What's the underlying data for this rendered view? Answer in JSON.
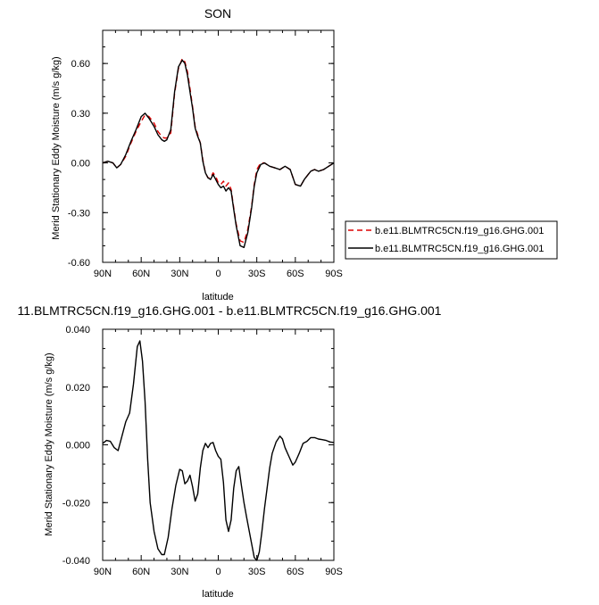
{
  "chart_data": [
    {
      "type": "line",
      "title": "SON",
      "xlabel": "latitude",
      "ylabel": "Merid Stationary Eddy Moisture (m/s g/kg)",
      "x_tick_values": [
        90,
        60,
        30,
        0,
        -30,
        -60,
        -90
      ],
      "x_tick_labels": [
        "90N",
        "60N",
        "30N",
        "0",
        "30S",
        "60S",
        "90S"
      ],
      "y_tick_values": [
        0.6,
        0.3,
        0.0,
        -0.3,
        -0.6
      ],
      "y_tick_labels": [
        "0.60",
        "0.30",
        "0.00",
        "-0.30",
        "-0.60"
      ],
      "xlim": [
        90,
        -90
      ],
      "ylim": [
        -0.6,
        0.8
      ],
      "legend_position": "right",
      "series": [
        {
          "name": "b.e11.BLMTRC5CN.f19_g16.GHG.001",
          "color": "#dd0000",
          "dash": "6,4",
          "x": [
            90,
            86,
            82,
            79,
            76,
            72,
            68,
            64,
            60,
            57,
            54,
            50,
            47,
            44,
            42,
            40,
            37,
            34,
            31,
            28,
            26,
            24,
            22,
            20,
            18,
            16,
            14,
            12,
            10,
            8,
            6,
            4,
            2,
            0,
            -2,
            -4,
            -6,
            -8,
            -10,
            -12,
            -14,
            -17,
            -20,
            -23,
            -26,
            -28,
            -30,
            -33,
            -36,
            -40,
            -44,
            -48,
            -52,
            -56,
            -60,
            -64,
            -67,
            -70,
            -72,
            -75,
            -78,
            -82,
            -86,
            -90
          ],
          "y": [
            0.0,
            0.01,
            0.0,
            -0.03,
            -0.01,
            0.04,
            0.12,
            0.19,
            0.25,
            0.29,
            0.28,
            0.24,
            0.19,
            0.16,
            0.15,
            0.15,
            0.18,
            0.42,
            0.57,
            0.63,
            0.61,
            0.55,
            0.45,
            0.34,
            0.22,
            0.17,
            0.12,
            0.02,
            -0.06,
            -0.09,
            -0.09,
            -0.06,
            -0.08,
            -0.12,
            -0.13,
            -0.11,
            -0.14,
            -0.12,
            -0.16,
            -0.27,
            -0.37,
            -0.47,
            -0.48,
            -0.4,
            -0.26,
            -0.13,
            -0.04,
            0.0,
            0.0,
            -0.02,
            -0.03,
            -0.04,
            -0.02,
            -0.04,
            -0.13,
            -0.14,
            -0.1,
            -0.07,
            -0.05,
            -0.04,
            -0.05,
            -0.04,
            -0.02,
            0.0
          ]
        },
        {
          "name": "b.e11.BLMTRC5CN.f19_g16.GHG.001",
          "color": "#000000",
          "dash": "",
          "x": [
            90,
            86,
            82,
            79,
            76,
            72,
            68,
            64,
            60,
            57,
            54,
            50,
            47,
            44,
            42,
            40,
            37,
            34,
            31,
            28,
            26,
            24,
            22,
            20,
            18,
            16,
            14,
            12,
            10,
            8,
            6,
            4,
            2,
            0,
            -2,
            -4,
            -6,
            -8,
            -10,
            -12,
            -14,
            -17,
            -20,
            -23,
            -26,
            -28,
            -30,
            -33,
            -36,
            -40,
            -44,
            -48,
            -52,
            -56,
            -60,
            -64,
            -67,
            -70,
            -72,
            -75,
            -78,
            -82,
            -86,
            -90
          ],
          "y": [
            0.0,
            0.01,
            0.0,
            -0.03,
            -0.01,
            0.05,
            0.13,
            0.2,
            0.28,
            0.3,
            0.27,
            0.22,
            0.17,
            0.14,
            0.13,
            0.14,
            0.2,
            0.43,
            0.58,
            0.62,
            0.6,
            0.53,
            0.43,
            0.33,
            0.21,
            0.16,
            0.12,
            0.01,
            -0.06,
            -0.09,
            -0.1,
            -0.07,
            -0.1,
            -0.13,
            -0.15,
            -0.14,
            -0.17,
            -0.15,
            -0.17,
            -0.28,
            -0.38,
            -0.5,
            -0.51,
            -0.42,
            -0.27,
            -0.14,
            -0.06,
            -0.01,
            0.0,
            -0.02,
            -0.03,
            -0.04,
            -0.02,
            -0.04,
            -0.13,
            -0.14,
            -0.1,
            -0.07,
            -0.05,
            -0.04,
            -0.05,
            -0.04,
            -0.02,
            0.0
          ]
        }
      ]
    },
    {
      "type": "line",
      "title": "11.BLMTRC5CN.f19_g16.GHG.001 - b.e11.BLMTRC5CN.f19_g16.GHG.001",
      "xlabel": "latitude",
      "ylabel": "Merid Stationary Eddy Moisture (m/s g/kg)",
      "x_tick_values": [
        90,
        60,
        30,
        0,
        -30,
        -60,
        -90
      ],
      "x_tick_labels": [
        "90N",
        "60N",
        "30N",
        "0",
        "30S",
        "60S",
        "90S"
      ],
      "y_tick_values": [
        0.04,
        0.02,
        0.0,
        -0.02,
        -0.04
      ],
      "y_tick_labels": [
        "0.040",
        "0.020",
        "0.000",
        "-0.020",
        "-0.040"
      ],
      "xlim": [
        90,
        -90
      ],
      "ylim": [
        -0.04,
        0.04
      ],
      "series": [
        {
          "color": "#000000",
          "x": [
            90,
            87,
            84,
            81,
            78,
            75,
            72,
            69,
            66,
            63,
            61,
            59,
            57,
            55,
            53,
            50,
            47,
            44,
            42,
            39,
            36,
            33,
            30,
            28,
            26,
            24,
            22,
            20,
            18,
            16,
            14,
            12,
            10,
            8,
            6,
            4,
            2,
            0,
            -2,
            -4,
            -6,
            -8,
            -10,
            -12,
            -14,
            -16,
            -18,
            -20,
            -22,
            -25,
            -28,
            -30,
            -32,
            -34,
            -36,
            -38,
            -40,
            -42,
            -45,
            -48,
            -50,
            -52,
            -55,
            -58,
            -60,
            -63,
            -66,
            -69,
            -72,
            -75,
            -78,
            -81,
            -84,
            -87,
            -90
          ],
          "y": [
            0.0005,
            0.0015,
            0.0012,
            -0.001,
            -0.002,
            0.003,
            0.008,
            0.011,
            0.021,
            0.034,
            0.036,
            0.029,
            0.015,
            -0.005,
            -0.02,
            -0.03,
            -0.036,
            -0.038,
            -0.038,
            -0.032,
            -0.022,
            -0.014,
            -0.0085,
            -0.009,
            -0.0135,
            -0.0125,
            -0.0105,
            -0.0145,
            -0.0195,
            -0.017,
            -0.008,
            -0.002,
            0.0005,
            -0.001,
            0.0005,
            0.0008,
            -0.002,
            -0.004,
            -0.005,
            -0.013,
            -0.026,
            -0.03,
            -0.026,
            -0.015,
            -0.009,
            -0.0075,
            -0.014,
            -0.02,
            -0.025,
            -0.032,
            -0.039,
            -0.04,
            -0.037,
            -0.03,
            -0.022,
            -0.015,
            -0.008,
            -0.003,
            0.001,
            0.003,
            0.002,
            -0.001,
            -0.004,
            -0.007,
            -0.006,
            -0.003,
            0.0005,
            0.0012,
            0.0025,
            0.0025,
            0.002,
            0.0018,
            0.0015,
            0.001,
            0.0008
          ]
        }
      ]
    }
  ]
}
